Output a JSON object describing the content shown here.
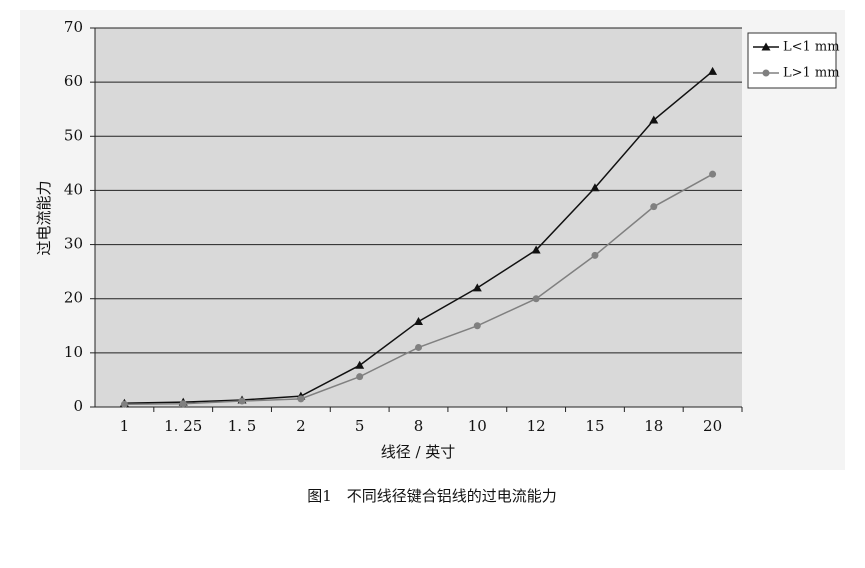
{
  "chart_data": {
    "type": "line",
    "caption": "图1　不同线径键合铝线的过电流能力",
    "x_label": "线径 / 英寸",
    "y_label": "过电流能力",
    "categories": [
      "1",
      "1. 25",
      "1. 5",
      "2",
      "5",
      "8",
      "10",
      "12",
      "15",
      "18",
      "20"
    ],
    "series": [
      {
        "name": "L<1 mm",
        "color": "#111111",
        "marker": "triangle",
        "values": [
          0.7,
          0.9,
          1.3,
          2,
          7.7,
          15.8,
          22,
          29,
          40.5,
          53,
          62
        ]
      },
      {
        "name": "L>1 mm",
        "color": "#808080",
        "marker": "circle",
        "values": [
          0.5,
          0.6,
          1.1,
          1.5,
          5.6,
          11,
          15,
          20,
          28,
          37,
          43
        ]
      }
    ],
    "ylim": [
      0,
      70
    ],
    "yticks": [
      0,
      10,
      20,
      30,
      40,
      50,
      60,
      70
    ],
    "grid": true,
    "legend": "right"
  }
}
